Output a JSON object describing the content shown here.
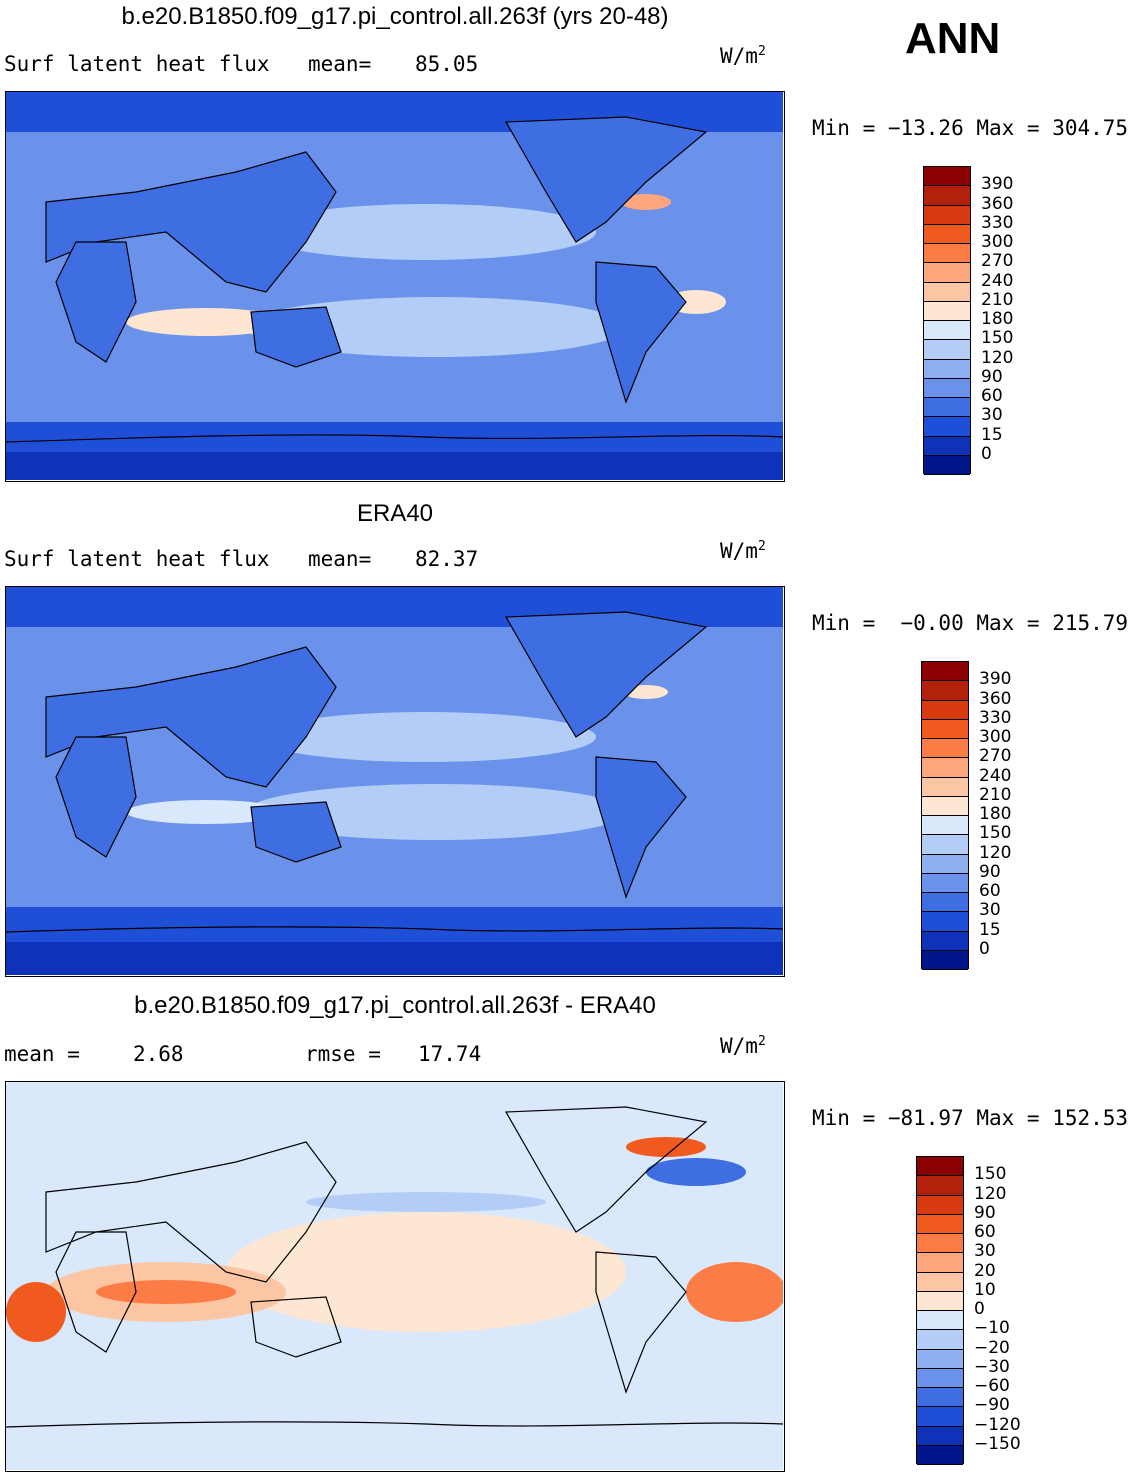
{
  "header": {
    "season": "ANN"
  },
  "panels": [
    {
      "id": "model",
      "title": "b.e20.B1850.f09_g17.pi_control.all.263f (yrs 20-48)",
      "left_text": "Surf latent heat flux",
      "mid_label": "mean=",
      "mid_value": "85.05",
      "units_base": "W/m",
      "units_exp": "2",
      "minmax_text": "Min = −13.26 Max = 304.75"
    },
    {
      "id": "obs",
      "title": "ERA40",
      "left_text": "Surf latent heat flux",
      "mid_label": "mean=",
      "mid_value": "82.37",
      "units_base": "W/m",
      "units_exp": "2",
      "minmax_text": "Min =  −0.00 Max = 215.79"
    },
    {
      "id": "diff",
      "title": "b.e20.B1850.f09_g17.pi_control.all.263f - ERA40",
      "left_label": "mean =",
      "left_value": "2.68",
      "mid_label": "rmse =",
      "mid_value": "17.74",
      "units_base": "W/m",
      "units_exp": "2",
      "minmax_text": "Min = −81.97 Max = 152.53"
    }
  ],
  "chart_data": [
    {
      "type": "heatmap",
      "title": "b.e20.B1850.f09_g17.pi_control.all.263f (yrs 20-48)",
      "variable": "Surf latent heat flux",
      "units": "W/m^2",
      "mean": 85.05,
      "min": -13.26,
      "max": 304.75,
      "colorbar_levels": [
        "390",
        "360",
        "330",
        "300",
        "270",
        "240",
        "210",
        "180",
        "150",
        "120",
        "90",
        "60",
        "30",
        "15",
        "0"
      ],
      "colors": [
        "#8b0000",
        "#b3200c",
        "#d63a0e",
        "#f05a1e",
        "#fb7d45",
        "#fda57c",
        "#fcc6a4",
        "#fde6d2",
        "#d9e8fb",
        "#b4cdf7",
        "#8fb0f0",
        "#6a92ea",
        "#3f6de2",
        "#1f4fd6",
        "#0f33b8",
        "#00168a"
      ]
    },
    {
      "type": "heatmap",
      "title": "ERA40",
      "variable": "Surf latent heat flux",
      "units": "W/m^2",
      "mean": 82.37,
      "min": -0.0,
      "max": 215.79,
      "colorbar_levels": [
        "390",
        "360",
        "330",
        "300",
        "270",
        "240",
        "210",
        "180",
        "150",
        "120",
        "90",
        "60",
        "30",
        "15",
        "0"
      ],
      "colors": [
        "#8b0000",
        "#b3200c",
        "#d63a0e",
        "#f05a1e",
        "#fb7d45",
        "#fda57c",
        "#fcc6a4",
        "#fde6d2",
        "#d9e8fb",
        "#b4cdf7",
        "#8fb0f0",
        "#6a92ea",
        "#3f6de2",
        "#1f4fd6",
        "#0f33b8",
        "#00168a"
      ]
    },
    {
      "type": "heatmap",
      "title": "b.e20.B1850.f09_g17.pi_control.all.263f - ERA40",
      "units": "W/m^2",
      "mean": 2.68,
      "rmse": 17.74,
      "min": -81.97,
      "max": 152.53,
      "colorbar_levels": [
        "150",
        "120",
        "90",
        "60",
        "30",
        "20",
        "10",
        "0",
        "−10",
        "−20",
        "−30",
        "−60",
        "−90",
        "−120",
        "−150"
      ],
      "colors": [
        "#8b0000",
        "#b3200c",
        "#d63a0e",
        "#f05a1e",
        "#fb7d45",
        "#fda57c",
        "#fcc6a4",
        "#fde6d2",
        "#d9e8fb",
        "#b4cdf7",
        "#8fb0f0",
        "#6a92ea",
        "#3f6de2",
        "#1f4fd6",
        "#0f33b8",
        "#00168a"
      ]
    }
  ]
}
